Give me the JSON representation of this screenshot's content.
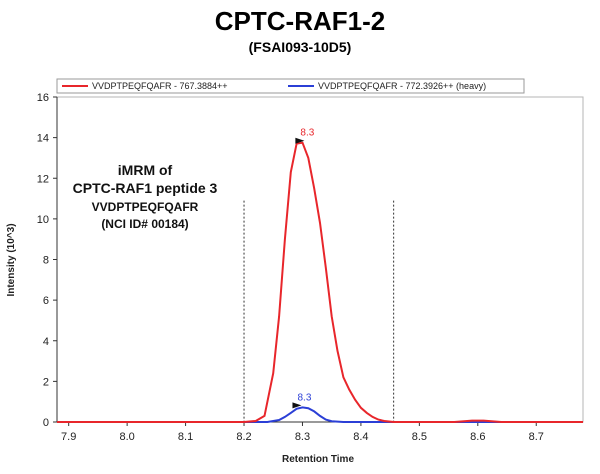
{
  "chart_data": {
    "type": "line",
    "title": "CPTC-RAF1-2",
    "subtitle": "(FSAI093-10D5)",
    "xlabel": "Retention Time",
    "ylabel": "Intensity (10^3)",
    "xlim": [
      7.88,
      8.78
    ],
    "ylim": [
      0,
      16
    ],
    "xticks": [
      7.9,
      8.0,
      8.1,
      8.2,
      8.3,
      8.4,
      8.5,
      8.6,
      8.7
    ],
    "xtick_labels": [
      "7.9",
      "8.0",
      "8.1",
      "8.2",
      "8.3",
      "8.4",
      "8.5",
      "8.6",
      "8.7"
    ],
    "yticks": [
      0,
      2,
      4,
      6,
      8,
      10,
      12,
      14,
      16
    ],
    "ytick_labels": [
      "0",
      "2",
      "4",
      "6",
      "8",
      "10",
      "12",
      "14",
      "16"
    ],
    "legend_position": "top",
    "integration_bounds": [
      8.2,
      8.456
    ],
    "annotation_lines": [
      "iMRM of",
      "CPTC-RAF1 peptide 3",
      "VVDPTPEQFQAFR",
      "(NCI ID# 00184)"
    ],
    "series": [
      {
        "name": "VVDPTPEQFQAFR - 767.3884++",
        "color": "#e8262b",
        "x": [
          7.88,
          8.2,
          8.22,
          8.235,
          8.25,
          8.26,
          8.27,
          8.28,
          8.29,
          8.3,
          8.31,
          8.32,
          8.33,
          8.34,
          8.35,
          8.36,
          8.37,
          8.38,
          8.39,
          8.4,
          8.41,
          8.42,
          8.43,
          8.44,
          8.456,
          8.5,
          8.56,
          8.59,
          8.61,
          8.64,
          8.78
        ],
        "y": [
          0,
          0,
          0.05,
          0.3,
          2.4,
          5.2,
          9.0,
          12.3,
          13.7,
          13.75,
          13.0,
          11.5,
          9.8,
          7.6,
          5.2,
          3.5,
          2.2,
          1.6,
          1.1,
          0.7,
          0.45,
          0.25,
          0.12,
          0.05,
          0,
          0,
          0,
          0.07,
          0.07,
          0,
          0
        ],
        "peak_label": "8.3",
        "peak_x": 8.305,
        "peak_y": 13.75
      },
      {
        "name": "VVDPTPEQFQAFR - 772.3926++ (heavy)",
        "color": "#2b3fd6",
        "x": [
          7.88,
          8.2,
          8.24,
          8.26,
          8.27,
          8.28,
          8.29,
          8.3,
          8.31,
          8.32,
          8.33,
          8.34,
          8.35,
          8.37,
          8.456,
          8.78
        ],
        "y": [
          0,
          0,
          0,
          0.1,
          0.25,
          0.45,
          0.65,
          0.72,
          0.68,
          0.52,
          0.3,
          0.12,
          0.04,
          0,
          0,
          0
        ],
        "peak_label": "8.3",
        "peak_x": 8.3,
        "peak_y": 0.72
      }
    ]
  }
}
